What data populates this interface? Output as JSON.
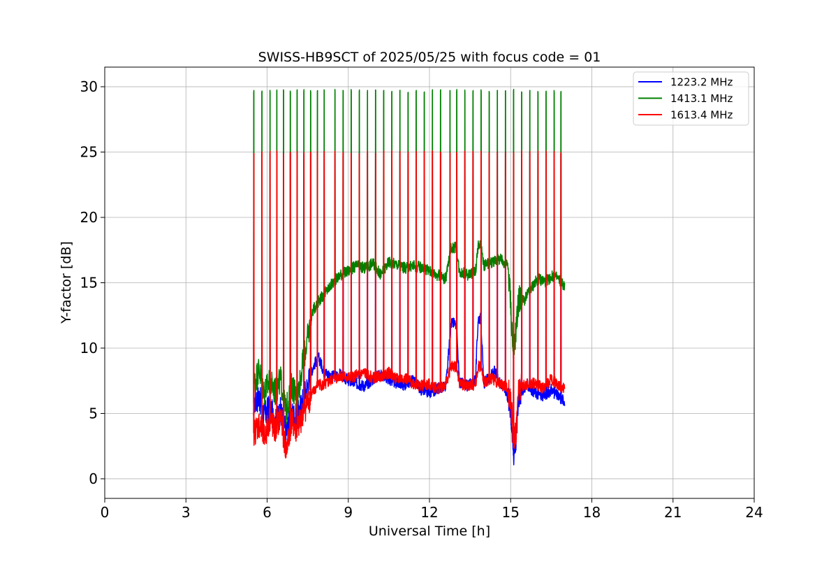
{
  "chart_data": {
    "type": "line",
    "title": "SWISS-HB9SCT of 2025/05/25 with focus code = 01",
    "xlabel": "Universal Time [h]",
    "ylabel": "Y-factor [dB]",
    "xlim": [
      0,
      24
    ],
    "ylim": [
      -1.5,
      31.5
    ],
    "xticks": [
      0,
      3,
      6,
      9,
      12,
      15,
      18,
      21,
      24
    ],
    "yticks": [
      0,
      5,
      10,
      15,
      20,
      25,
      30
    ],
    "grid": true,
    "legend_position": "top-right",
    "calibration_spike_times": [
      5.5,
      5.8,
      6.1,
      6.35,
      6.6,
      6.85,
      7.1,
      7.35,
      7.6,
      7.85,
      8.1,
      8.5,
      8.8,
      9.1,
      9.4,
      9.7,
      10.0,
      10.3,
      10.6,
      10.9,
      11.2,
      11.5,
      11.8,
      12.1,
      12.4,
      12.75,
      13.0,
      13.3,
      13.6,
      13.9,
      14.2,
      14.5,
      14.8,
      15.1,
      15.4,
      15.7,
      16.0,
      16.3,
      16.6,
      16.85
    ],
    "series": [
      {
        "name": "1223.2 MHz",
        "color": "#0000ff",
        "spike_peak": 25.1,
        "baseline": [
          [
            5.5,
            5.8
          ],
          [
            5.7,
            6.3
          ],
          [
            5.9,
            4.8
          ],
          [
            6.1,
            5.5
          ],
          [
            6.3,
            4.2
          ],
          [
            6.5,
            5.2
          ],
          [
            6.7,
            3.5
          ],
          [
            6.9,
            5.0
          ],
          [
            7.1,
            4.6
          ],
          [
            7.3,
            5.8
          ],
          [
            7.5,
            7.2
          ],
          [
            7.7,
            8.6
          ],
          [
            7.9,
            9.3
          ],
          [
            8.1,
            8.2
          ],
          [
            8.4,
            7.8
          ],
          [
            8.7,
            8.0
          ],
          [
            9.0,
            7.5
          ],
          [
            9.3,
            7.3
          ],
          [
            9.6,
            7.1
          ],
          [
            9.9,
            7.6
          ],
          [
            10.2,
            8.0
          ],
          [
            10.5,
            7.6
          ],
          [
            10.8,
            7.3
          ],
          [
            11.1,
            7.2
          ],
          [
            11.4,
            7.6
          ],
          [
            11.7,
            6.8
          ],
          [
            12.0,
            6.6
          ],
          [
            12.3,
            6.9
          ],
          [
            12.6,
            7.1
          ],
          [
            12.8,
            11.9
          ],
          [
            13.0,
            11.9
          ],
          [
            13.1,
            7.4
          ],
          [
            13.4,
            7.1
          ],
          [
            13.7,
            7.6
          ],
          [
            13.8,
            12.3
          ],
          [
            13.9,
            12.3
          ],
          [
            14.0,
            7.3
          ],
          [
            14.2,
            7.7
          ],
          [
            14.4,
            8.2
          ],
          [
            14.6,
            7.4
          ],
          [
            14.8,
            6.9
          ],
          [
            15.0,
            5.5
          ],
          [
            15.1,
            1.8
          ],
          [
            15.2,
            3.2
          ],
          [
            15.3,
            6.5
          ],
          [
            15.6,
            7.2
          ],
          [
            15.9,
            6.6
          ],
          [
            16.2,
            6.3
          ],
          [
            16.5,
            6.8
          ],
          [
            16.8,
            6.2
          ],
          [
            17.0,
            6.0
          ]
        ]
      },
      {
        "name": "1413.1 MHz",
        "color": "#008000",
        "spike_peak": 29.8,
        "baseline": [
          [
            5.5,
            7.2
          ],
          [
            5.7,
            8.4
          ],
          [
            5.9,
            6.6
          ],
          [
            6.1,
            7.5
          ],
          [
            6.3,
            6.6
          ],
          [
            6.5,
            7.6
          ],
          [
            6.7,
            5.1
          ],
          [
            6.9,
            7.3
          ],
          [
            7.1,
            6.1
          ],
          [
            7.3,
            8.6
          ],
          [
            7.5,
            10.8
          ],
          [
            7.7,
            12.9
          ],
          [
            7.9,
            13.6
          ],
          [
            8.1,
            14.1
          ],
          [
            8.4,
            14.9
          ],
          [
            8.7,
            15.6
          ],
          [
            9.0,
            15.9
          ],
          [
            9.3,
            16.3
          ],
          [
            9.6,
            16.1
          ],
          [
            9.9,
            16.5
          ],
          [
            10.2,
            15.6
          ],
          [
            10.5,
            16.6
          ],
          [
            10.8,
            16.4
          ],
          [
            11.1,
            16.1
          ],
          [
            11.4,
            16.3
          ],
          [
            11.7,
            16.2
          ],
          [
            12.0,
            15.9
          ],
          [
            12.3,
            15.6
          ],
          [
            12.6,
            15.3
          ],
          [
            12.8,
            17.7
          ],
          [
            13.0,
            17.7
          ],
          [
            13.1,
            15.9
          ],
          [
            13.4,
            15.6
          ],
          [
            13.7,
            15.9
          ],
          [
            13.8,
            17.8
          ],
          [
            13.9,
            17.8
          ],
          [
            14.0,
            16.3
          ],
          [
            14.3,
            16.6
          ],
          [
            14.6,
            16.8
          ],
          [
            14.9,
            16.3
          ],
          [
            15.0,
            13.5
          ],
          [
            15.1,
            9.2
          ],
          [
            15.2,
            11.5
          ],
          [
            15.3,
            13.8
          ],
          [
            15.5,
            13.6
          ],
          [
            15.7,
            14.4
          ],
          [
            16.0,
            15.3
          ],
          [
            16.3,
            15.1
          ],
          [
            16.6,
            15.6
          ],
          [
            16.8,
            15.2
          ],
          [
            17.0,
            14.7
          ]
        ]
      },
      {
        "name": "1613.4 MHz",
        "color": "#ff0000",
        "spike_peak": 25.1,
        "baseline": [
          [
            5.5,
            3.5
          ],
          [
            5.7,
            4.2
          ],
          [
            5.9,
            3.1
          ],
          [
            6.1,
            4.6
          ],
          [
            6.3,
            3.6
          ],
          [
            6.5,
            4.8
          ],
          [
            6.7,
            2.1
          ],
          [
            6.9,
            4.4
          ],
          [
            7.1,
            3.6
          ],
          [
            7.3,
            4.9
          ],
          [
            7.5,
            5.9
          ],
          [
            7.7,
            6.6
          ],
          [
            7.9,
            7.3
          ],
          [
            8.1,
            7.1
          ],
          [
            8.4,
            7.6
          ],
          [
            8.7,
            7.9
          ],
          [
            9.0,
            7.7
          ],
          [
            9.3,
            7.9
          ],
          [
            9.6,
            8.1
          ],
          [
            9.9,
            7.7
          ],
          [
            10.2,
            7.9
          ],
          [
            10.5,
            8.1
          ],
          [
            10.8,
            7.6
          ],
          [
            11.1,
            7.7
          ],
          [
            11.4,
            7.3
          ],
          [
            11.7,
            7.1
          ],
          [
            12.0,
            7.2
          ],
          [
            12.3,
            6.9
          ],
          [
            12.6,
            7.2
          ],
          [
            12.8,
            8.6
          ],
          [
            13.0,
            8.6
          ],
          [
            13.1,
            7.3
          ],
          [
            13.4,
            7.1
          ],
          [
            13.7,
            7.2
          ],
          [
            13.8,
            8.6
          ],
          [
            13.9,
            8.6
          ],
          [
            14.0,
            7.4
          ],
          [
            14.3,
            7.7
          ],
          [
            14.6,
            7.3
          ],
          [
            14.9,
            6.9
          ],
          [
            15.0,
            6.2
          ],
          [
            15.1,
            2.9
          ],
          [
            15.2,
            3.6
          ],
          [
            15.3,
            6.9
          ],
          [
            15.6,
            7.2
          ],
          [
            15.9,
            7.3
          ],
          [
            16.2,
            6.9
          ],
          [
            16.5,
            7.6
          ],
          [
            16.8,
            7.1
          ],
          [
            17.0,
            6.8
          ]
        ]
      }
    ]
  }
}
